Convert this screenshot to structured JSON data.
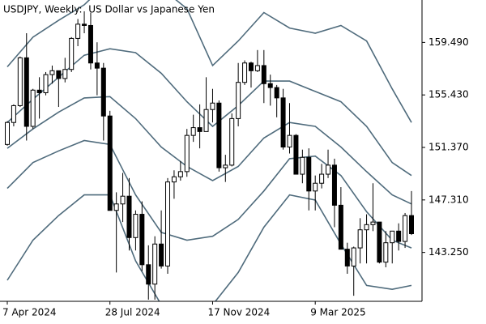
{
  "chart_data": {
    "type": "candlestick",
    "title": "USDJPY, Weekly:  US Dollar vs Japanese Yen",
    "categories": [
      "7 Apr 2024",
      null,
      null,
      null,
      null,
      null,
      null,
      null,
      null,
      null,
      null,
      null,
      null,
      null,
      null,
      null,
      "28 Jul 2024",
      null,
      null,
      null,
      null,
      null,
      null,
      null,
      null,
      null,
      null,
      null,
      null,
      null,
      null,
      null,
      "17 Nov 2024",
      null,
      null,
      null,
      null,
      null,
      null,
      null,
      null,
      null,
      null,
      null,
      null,
      null,
      null,
      null,
      "9 Mar 2025",
      null,
      null,
      null,
      null,
      null,
      null,
      null,
      null,
      null,
      null,
      null,
      null,
      null,
      null,
      null
    ],
    "open": [
      151.6,
      153.3,
      154.6,
      158.3,
      153.0,
      155.8,
      155.6,
      157.0,
      157.3,
      156.7,
      157.4,
      159.8,
      160.9,
      160.8,
      157.9,
      157.5,
      153.8,
      146.5,
      147.0,
      147.6,
      144.4,
      146.2,
      142.3,
      140.8,
      143.9,
      142.2,
      148.7,
      149.1,
      149.5,
      152.3,
      152.9,
      152.6,
      154.3,
      154.8,
      149.8,
      150.0,
      153.6,
      156.4,
      157.9,
      157.3,
      157.7,
      156.3,
      156.0,
      155.2,
      151.4,
      152.3,
      149.3,
      150.6,
      148.0,
      148.6,
      149.3,
      150.0,
      146.9,
      143.5,
      142.2,
      143.6,
      145.0,
      145.4,
      145.6,
      142.5,
      144.0,
      144.9,
      144.1,
      146.1
    ],
    "high": [
      153.4,
      154.7,
      158.4,
      160.2,
      155.9,
      156.8,
      157.2,
      157.7,
      157.3,
      158.3,
      159.9,
      161.3,
      161.9,
      161.8,
      159.5,
      157.9,
      154.2,
      147.9,
      149.4,
      149.0,
      146.5,
      147.2,
      143.8,
      144.5,
      146.5,
      149.0,
      149.6,
      150.3,
      152.8,
      153.9,
      154.7,
      156.8,
      155.9,
      155.0,
      150.8,
      154.0,
      157.9,
      158.1,
      158.0,
      158.9,
      158.9,
      157.0,
      156.2,
      155.9,
      154.8,
      152.4,
      151.2,
      151.3,
      149.2,
      150.1,
      151.2,
      150.5,
      148.3,
      144.0,
      143.7,
      145.9,
      146.2,
      148.6,
      145.6,
      144.9,
      144.9,
      145.5,
      146.3,
      148.0
    ],
    "low": [
      151.5,
      153.0,
      154.5,
      151.9,
      152.8,
      153.6,
      155.4,
      156.3,
      154.5,
      156.4,
      157.2,
      159.2,
      160.2,
      157.4,
      155.4,
      151.9,
      146.5,
      141.7,
      145.6,
      143.4,
      143.4,
      141.8,
      139.6,
      139.6,
      142.0,
      141.6,
      147.4,
      148.8,
      149.1,
      151.8,
      151.3,
      152.6,
      153.3,
      149.5,
      148.7,
      149.9,
      153.0,
      156.2,
      156.0,
      157.2,
      154.8,
      154.6,
      153.7,
      151.2,
      150.9,
      149.3,
      148.6,
      146.5,
      146.5,
      148.2,
      149.0,
      145.2,
      143.5,
      141.6,
      139.9,
      142.4,
      142.4,
      144.9,
      142.4,
      142.1,
      142.4,
      143.4,
      143.6,
      144.6
    ],
    "close": [
      153.3,
      154.6,
      158.3,
      153.0,
      155.8,
      155.6,
      157.0,
      157.3,
      156.7,
      157.4,
      159.8,
      160.9,
      160.8,
      157.9,
      157.5,
      153.8,
      146.5,
      147.0,
      147.6,
      144.4,
      146.2,
      142.3,
      140.8,
      143.9,
      142.2,
      148.7,
      149.1,
      149.5,
      152.3,
      152.9,
      152.6,
      154.3,
      154.8,
      149.8,
      150.0,
      153.6,
      156.4,
      157.9,
      157.3,
      157.7,
      156.3,
      156.0,
      155.2,
      151.4,
      152.3,
      149.3,
      150.6,
      148.0,
      148.6,
      149.3,
      150.0,
      146.9,
      143.5,
      142.2,
      143.6,
      145.0,
      145.4,
      145.6,
      142.5,
      144.0,
      144.9,
      144.1,
      146.1,
      144.7
    ],
    "up_color": "#ffffff",
    "down_color": "#000000",
    "edge_color": "#000000",
    "bands": [
      {
        "color": "#4f6b7c",
        "x": [
          0,
          4,
          8,
          12,
          16,
          20,
          24,
          28,
          32,
          36,
          40,
          44,
          48,
          52,
          56,
          60,
          63
        ],
        "values": [
          157.6,
          159.9,
          161.2,
          162.4,
          164.3,
          165.3,
          163.7,
          162.1,
          157.7,
          159.6,
          161.8,
          160.6,
          160.2,
          160.8,
          159.6,
          155.9,
          153.3
        ]
      },
      {
        "color": "#4f6b7c",
        "x": [
          0,
          4,
          8,
          12,
          16,
          20,
          24,
          28,
          32,
          36,
          40,
          44,
          48,
          52,
          56,
          60,
          63
        ],
        "values": [
          153.3,
          155.1,
          156.8,
          158.5,
          159.0,
          158.7,
          157.1,
          154.9,
          153.0,
          154.6,
          156.5,
          156.5,
          155.7,
          154.9,
          153.0,
          150.2,
          149.2
        ]
      },
      {
        "color": "#4f6b7c",
        "x": [
          0,
          4,
          8,
          12,
          16,
          20,
          24,
          28,
          32,
          36,
          40,
          44,
          48,
          52,
          56,
          60,
          63
        ],
        "values": [
          151.3,
          152.8,
          154.1,
          155.2,
          155.3,
          153.6,
          151.4,
          149.9,
          148.8,
          149.9,
          152.1,
          153.3,
          153.0,
          151.4,
          149.5,
          147.7,
          147.0
        ]
      },
      {
        "color": "#4f6b7c",
        "x": [
          0,
          4,
          8,
          12,
          16,
          20,
          24,
          28,
          32,
          36,
          40,
          44,
          48,
          52,
          56,
          60,
          63
        ],
        "values": [
          148.2,
          150.2,
          151.1,
          151.9,
          151.6,
          147.7,
          144.8,
          144.2,
          144.5,
          145.8,
          148.0,
          150.5,
          150.7,
          149.2,
          146.4,
          144.2,
          143.6
        ]
      },
      {
        "color": "#4f6b7c",
        "x": [
          0,
          4,
          8,
          12,
          16,
          20,
          24,
          28,
          32,
          36,
          40,
          44,
          48,
          52,
          56,
          60,
          63
        ],
        "values": [
          141.1,
          144.2,
          146.1,
          147.7,
          147.7,
          142.6,
          139.2,
          138.2,
          139.2,
          141.7,
          145.2,
          147.7,
          147.3,
          143.9,
          140.7,
          140.4,
          140.7
        ]
      }
    ],
    "ylim": [
      139.47,
      162.77
    ],
    "yticks": [
      {
        "value": 159.49,
        "label": "159.490"
      },
      {
        "value": 155.43,
        "label": "155.430"
      },
      {
        "value": 151.37,
        "label": "151.370"
      },
      {
        "value": 147.31,
        "label": "147.310"
      },
      {
        "value": 143.25,
        "label": "143.250"
      }
    ],
    "grid": false
  }
}
